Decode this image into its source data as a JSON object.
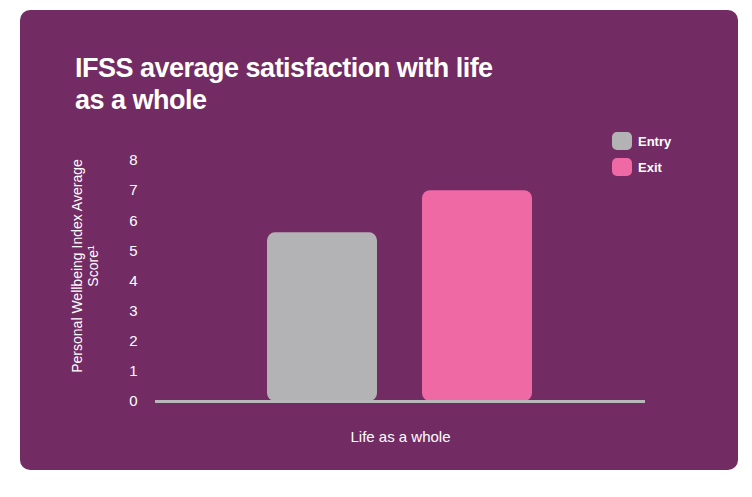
{
  "chart_data": {
    "type": "bar",
    "title": "IFSS average satisfaction with life as a whole",
    "y_label": "Personal Wellbeing Index Average Score¹",
    "categories": [
      "Life as a whole"
    ],
    "series": [
      {
        "name": "Entry",
        "color": "#b3b3b5",
        "values": [
          5.6
        ]
      },
      {
        "name": "Exit",
        "color": "#ef6aa5",
        "values": [
          7.0
        ]
      }
    ],
    "ylim": [
      0,
      8
    ],
    "yticks": [
      0,
      1,
      2,
      3,
      4,
      5,
      6,
      7,
      8
    ],
    "grid": false,
    "legend": "top-right"
  }
}
